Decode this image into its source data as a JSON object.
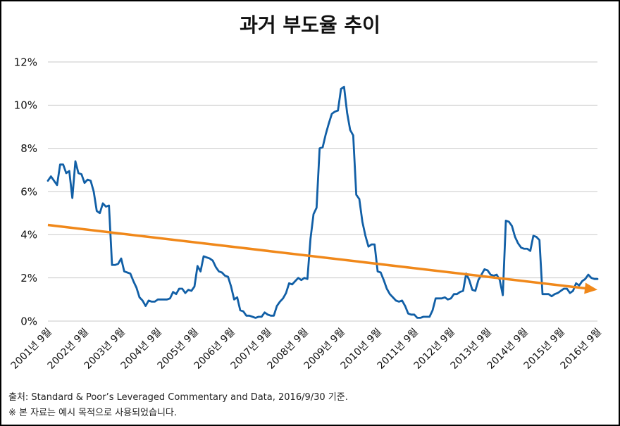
{
  "colors": {
    "series": "#115fa6",
    "trend": "#f0881a",
    "grid": "#c9c9c9",
    "text": "#111111"
  },
  "footer": {
    "source": "출처: Standard & Poor’s Leveraged Commentary and Data, 2016/9/30 기준.",
    "disclaimer": "※ 본 자료는 예시 목적으로 사용되었습니다."
  },
  "chart_data": {
    "type": "line",
    "title": "과거 부도율 추이",
    "xlabel": "",
    "ylabel": "",
    "ylim": [
      0,
      12
    ],
    "grid": true,
    "y_ticks": [
      0,
      2,
      4,
      6,
      8,
      10,
      12
    ],
    "y_tick_labels": [
      "0%",
      "2%",
      "4%",
      "6%",
      "8%",
      "10%",
      "12%"
    ],
    "x_tick_labels": [
      "2001년 9월",
      "2002년 9월",
      "2003년 9월",
      "2004년 9월",
      "2005년 9월",
      "2006년 9월",
      "2007년 9월",
      "2008년 9월",
      "2009년 9월",
      "2010년 9월",
      "2011년 9월",
      "2012년 9월",
      "2013년 9월",
      "2014년 9월",
      "2015년 9월",
      "2016년 9월"
    ],
    "months_per_tick": 12,
    "series": [
      {
        "color": "#115fa6",
        "values": [
          6.5,
          6.7,
          6.5,
          6.3,
          7.25,
          7.25,
          6.85,
          6.95,
          5.7,
          7.4,
          6.85,
          6.8,
          6.4,
          6.55,
          6.5,
          6.0,
          5.1,
          5.0,
          5.45,
          5.3,
          5.35,
          2.6,
          2.6,
          2.65,
          2.9,
          2.3,
          2.25,
          2.2,
          1.85,
          1.55,
          1.1,
          0.95,
          0.7,
          0.95,
          0.9,
          0.9,
          1.0,
          1.0,
          1.0,
          1.0,
          1.05,
          1.35,
          1.25,
          1.5,
          1.5,
          1.3,
          1.45,
          1.4,
          1.6,
          2.55,
          2.3,
          3.0,
          2.95,
          2.9,
          2.8,
          2.5,
          2.3,
          2.25,
          2.1,
          2.05,
          1.6,
          1.0,
          1.1,
          0.5,
          0.45,
          0.25,
          0.25,
          0.2,
          0.15,
          0.2,
          0.2,
          0.4,
          0.3,
          0.25,
          0.25,
          0.7,
          0.9,
          1.05,
          1.3,
          1.75,
          1.7,
          1.85,
          2.0,
          1.9,
          2.0,
          1.95,
          3.8,
          4.95,
          5.25,
          8.0,
          8.05,
          8.65,
          9.15,
          9.6,
          9.7,
          9.75,
          10.75,
          10.85,
          9.65,
          8.85,
          8.6,
          5.85,
          5.65,
          4.6,
          3.95,
          3.45,
          3.55,
          3.55,
          2.3,
          2.25,
          1.9,
          1.5,
          1.25,
          1.1,
          0.95,
          0.9,
          0.95,
          0.7,
          0.35,
          0.3,
          0.3,
          0.15,
          0.15,
          0.2,
          0.2,
          0.2,
          0.5,
          1.05,
          1.05,
          1.05,
          1.1,
          1.0,
          1.05,
          1.25,
          1.25,
          1.35,
          1.4,
          2.2,
          1.9,
          1.45,
          1.4,
          1.9,
          2.15,
          2.4,
          2.35,
          2.15,
          2.1,
          2.15,
          1.9,
          1.2,
          4.65,
          4.6,
          4.4,
          3.9,
          3.6,
          3.4,
          3.35,
          3.35,
          3.25,
          3.95,
          3.9,
          3.75,
          1.25,
          1.25,
          1.25,
          1.15,
          1.25,
          1.3,
          1.4,
          1.5,
          1.5,
          1.3,
          1.4,
          1.75,
          1.65,
          1.85,
          1.95,
          2.15,
          2.0,
          1.95,
          1.95
        ]
      }
    ],
    "trend_line": {
      "start_value": 4.45,
      "end_value": 1.45,
      "arrow": true,
      "color": "#f0881a"
    }
  }
}
